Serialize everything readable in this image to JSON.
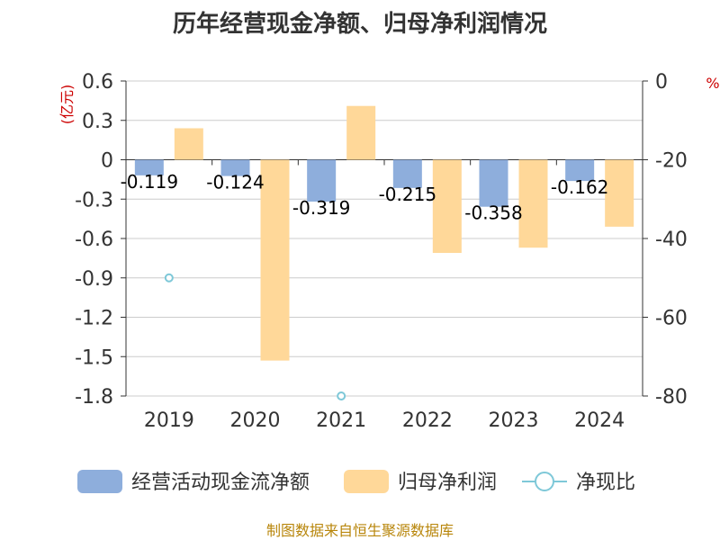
{
  "chart_data": {
    "type": "bar",
    "title": "历年经营现金净额、归母净利润情况",
    "categories": [
      "2019",
      "2020",
      "2021",
      "2022",
      "2023",
      "2024"
    ],
    "left_axis": {
      "unit_label": "(亿元)",
      "ticks": [
        "0.6",
        "0.3",
        "0",
        "-0.3",
        "-0.6",
        "-0.9",
        "-1.2",
        "-1.5",
        "-1.8"
      ],
      "ylim": [
        -1.8,
        0.6
      ]
    },
    "right_axis": {
      "unit_label": "%",
      "ticks": [
        "0",
        "-20",
        "-40",
        "-60",
        "-80"
      ],
      "ylim": [
        -80,
        0
      ]
    },
    "series": [
      {
        "name": "经营活动现金流净额",
        "axis": "left",
        "color": "#8eaedc",
        "values": [
          -0.119,
          -0.124,
          -0.319,
          -0.215,
          -0.358,
          -0.162
        ],
        "labels": [
          "-0.119",
          "-0.124",
          "-0.319",
          "-0.215",
          "-0.358",
          "-0.162"
        ]
      },
      {
        "name": "归母净利润",
        "axis": "left",
        "color": "#ffd899",
        "values": [
          0.24,
          -1.53,
          0.41,
          -0.71,
          -0.67,
          -0.51
        ]
      },
      {
        "name": "净现比",
        "axis": "right",
        "color": "#7ec8d8",
        "points": [
          {
            "x": "2019",
            "y": -50
          },
          {
            "x": "2021",
            "y": -80
          }
        ]
      }
    ],
    "grid": true,
    "legend_position": "bottom"
  },
  "source": "制图数据来自恒生聚源数据库"
}
